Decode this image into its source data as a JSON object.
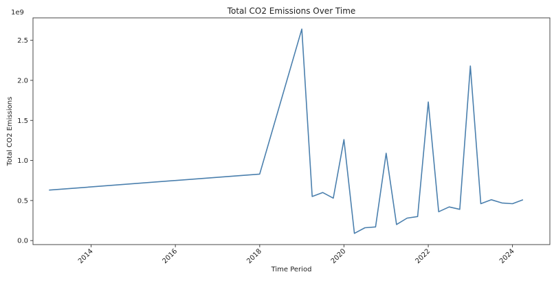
{
  "chart_data": {
    "type": "line",
    "title": "Total CO2 Emissions Over Time",
    "xlabel": "Time Period",
    "ylabel": "Total CO2 Emissions",
    "y_offset_label": "1e9",
    "y_ticks": [
      0.0,
      0.5,
      1.0,
      1.5,
      2.0,
      2.5
    ],
    "y_tick_labels": [
      "0.0",
      "0.5",
      "1.0",
      "1.5",
      "2.0",
      "2.5"
    ],
    "x_ticks": [
      "2014-01-01",
      "2016-01-01",
      "2018-01-01",
      "2020-01-01",
      "2022-01-01",
      "2024-01-01"
    ],
    "x_tick_labels": [
      "2014",
      "2016",
      "2018",
      "2020",
      "2022",
      "2024"
    ],
    "xlim": [
      "2012-08-15",
      "2024-11-20"
    ],
    "ylim": [
      -0.05,
      2.78
    ],
    "grid": false,
    "line_color": "#4a7fad",
    "series": [
      {
        "x": [
          "2013-01-01",
          "2018-01-01",
          "2019-01-01",
          "2019-04-01",
          "2019-07-01",
          "2019-10-01",
          "2020-01-01",
          "2020-04-01",
          "2020-07-01",
          "2020-10-01",
          "2021-01-01",
          "2021-04-01",
          "2021-07-01",
          "2021-10-01",
          "2022-01-01",
          "2022-04-01",
          "2022-07-01",
          "2022-10-01",
          "2023-01-01",
          "2023-04-01",
          "2023-07-01",
          "2023-10-01",
          "2024-01-01",
          "2024-04-01"
        ],
        "y": [
          0.63,
          0.83,
          2.64,
          0.55,
          0.6,
          0.53,
          1.26,
          0.09,
          0.16,
          0.17,
          1.09,
          0.2,
          0.28,
          0.3,
          1.73,
          0.36,
          0.42,
          0.39,
          2.18,
          0.46,
          0.51,
          0.47,
          0.46,
          0.51
        ]
      }
    ]
  }
}
